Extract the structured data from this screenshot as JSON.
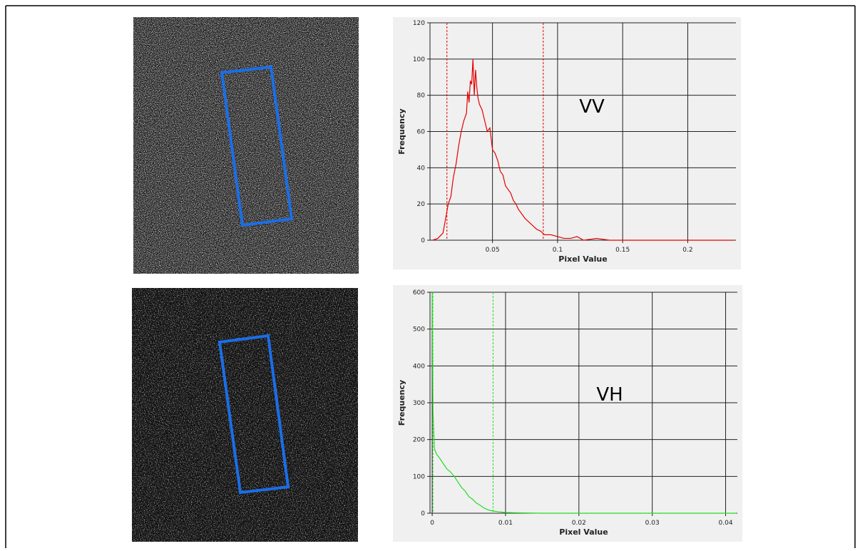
{
  "chart_data": [
    {
      "type": "line",
      "annotation": "VV",
      "x_label": "Pixel Value",
      "y_label": "Frequency",
      "xlim": [
        0.002,
        0.237
      ],
      "ylim": [
        0,
        120
      ],
      "xticks": [
        0.05,
        0.1,
        0.15,
        0.2
      ],
      "yticks": [
        0,
        20,
        40,
        60,
        80,
        100,
        120
      ],
      "grid": true,
      "vlines": [
        0.015,
        0.089
      ],
      "x": [
        0.004,
        0.008,
        0.012,
        0.014,
        0.016,
        0.018,
        0.02,
        0.022,
        0.024,
        0.026,
        0.028,
        0.03,
        0.031,
        0.032,
        0.033,
        0.034,
        0.035,
        0.036,
        0.037,
        0.038,
        0.039,
        0.04,
        0.042,
        0.044,
        0.046,
        0.048,
        0.05,
        0.052,
        0.054,
        0.056,
        0.058,
        0.06,
        0.062,
        0.064,
        0.066,
        0.068,
        0.07,
        0.072,
        0.075,
        0.078,
        0.081,
        0.084,
        0.087,
        0.09,
        0.095,
        0.1,
        0.105,
        0.11,
        0.115,
        0.12,
        0.13,
        0.14,
        0.15,
        0.17,
        0.2,
        0.235
      ],
      "series": [
        {
          "color": "#e60000",
          "values": [
            0,
            1,
            4,
            12,
            20,
            24,
            35,
            42,
            52,
            60,
            66,
            70,
            82,
            76,
            88,
            86,
            100,
            80,
            94,
            84,
            78,
            75,
            72,
            66,
            60,
            62,
            50,
            48,
            44,
            38,
            36,
            30,
            28,
            26,
            22,
            20,
            17,
            15,
            12,
            10,
            8,
            6,
            5,
            3,
            3,
            2,
            1,
            1,
            2,
            0,
            1,
            0,
            0,
            0,
            0,
            0
          ]
        }
      ]
    },
    {
      "type": "line",
      "annotation": "VH",
      "x_label": "Pixel Value",
      "y_label": "Frequency",
      "xlim": [
        -0.0003,
        0.0416
      ],
      "ylim": [
        0,
        600
      ],
      "xticks": [
        0,
        0.01,
        0.02,
        0.03,
        0.04
      ],
      "yticks": [
        0,
        100,
        200,
        300,
        400,
        500,
        600
      ],
      "grid": true,
      "vlines": [
        0.0001,
        0.0083
      ],
      "x": [
        0,
        0.0001,
        0.0003,
        0.0006,
        0.001,
        0.0015,
        0.002,
        0.0025,
        0.003,
        0.0035,
        0.004,
        0.0045,
        0.005,
        0.0055,
        0.006,
        0.0065,
        0.007,
        0.0075,
        0.008,
        0.009,
        0.01,
        0.012,
        0.015,
        0.02,
        0.03,
        0.0415
      ],
      "series": [
        {
          "color": "#22dd22",
          "values": [
            600,
            280,
            175,
            160,
            150,
            135,
            120,
            112,
            100,
            85,
            70,
            60,
            45,
            38,
            28,
            22,
            15,
            10,
            7,
            4,
            2,
            1,
            0,
            0,
            0,
            0
          ]
        }
      ]
    }
  ]
}
